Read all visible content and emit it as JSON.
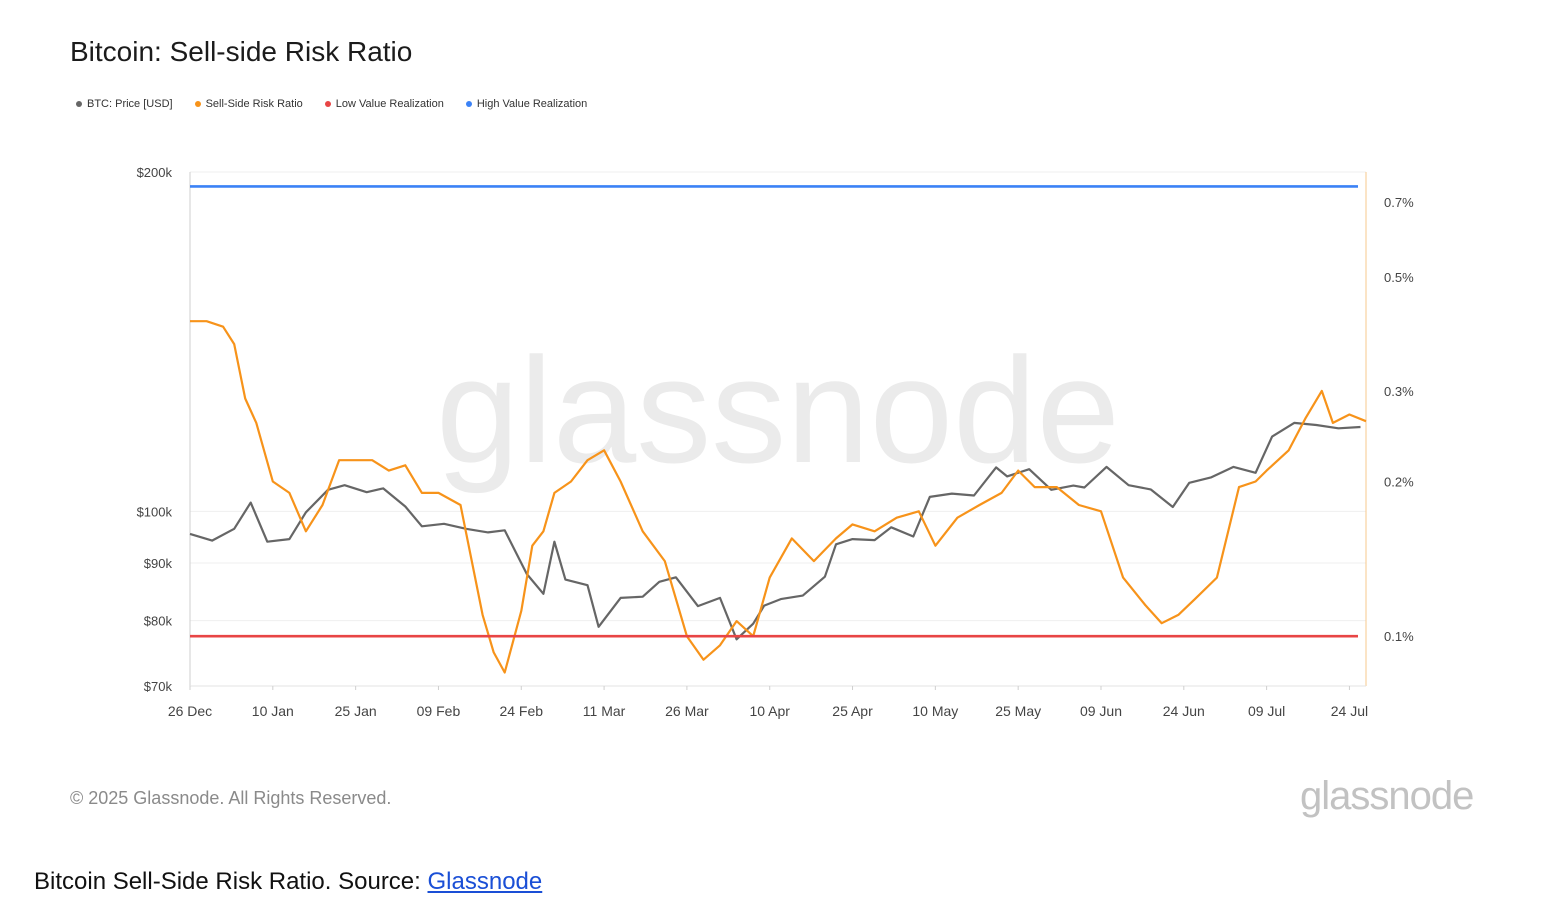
{
  "header": {
    "title": "Bitcoin: Sell-side Risk Ratio"
  },
  "legend": [
    {
      "label": "BTC: Price [USD]",
      "color": "#666666"
    },
    {
      "label": "Sell-Side Risk Ratio",
      "color": "#f7931a"
    },
    {
      "label": "Low Value Realization",
      "color": "#e84545"
    },
    {
      "label": "High Value Realization",
      "color": "#3b82f6"
    }
  ],
  "watermark": "glassnode",
  "footer": {
    "copyright": "© 2025 Glassnode. All Rights Reserved.",
    "logo_text": "glassnode"
  },
  "caption": {
    "text": "Bitcoin Sell-Side Risk Ratio. Source: ",
    "link_label": "Glassnode"
  },
  "chart_data": {
    "type": "line",
    "title": "Bitcoin: Sell-side Risk Ratio",
    "x_ticks": [
      "26 Dec",
      "10 Jan",
      "25 Jan",
      "09 Feb",
      "24 Feb",
      "11 Mar",
      "26 Mar",
      "10 Apr",
      "25 Apr",
      "10 May",
      "25 May",
      "09 Jun",
      "24 Jun",
      "09 Jul",
      "24 Jul"
    ],
    "xlim": [
      "2024-12-26",
      "2025-07-27"
    ],
    "y_left": {
      "scale": "log",
      "ylim": [
        70000,
        200000
      ],
      "ticks": [
        70000,
        80000,
        90000,
        100000,
        200000
      ],
      "tick_labels": [
        "$70k",
        "$80k",
        "$90k",
        "$100k",
        "$200k"
      ]
    },
    "y_right": {
      "scale": "log",
      "ylim": [
        0.08,
        0.8
      ],
      "ticks": [
        0.1,
        0.2,
        0.3,
        0.5,
        0.7
      ],
      "tick_labels": [
        "0.1%",
        "0.2%",
        "0.3%",
        "0.5%",
        "0.7%"
      ]
    },
    "grid": true,
    "series": [
      {
        "name": "BTC: Price [USD]",
        "axis": "left",
        "color": "#666666",
        "x": [
          "2024-12-26",
          "2024-12-30",
          "2025-01-03",
          "2025-01-06",
          "2025-01-09",
          "2025-01-13",
          "2025-01-16",
          "2025-01-20",
          "2025-01-23",
          "2025-01-27",
          "2025-01-30",
          "2025-02-03",
          "2025-02-06",
          "2025-02-10",
          "2025-02-14",
          "2025-02-18",
          "2025-02-21",
          "2025-02-25",
          "2025-02-28",
          "2025-03-02",
          "2025-03-04",
          "2025-03-08",
          "2025-03-10",
          "2025-03-14",
          "2025-03-18",
          "2025-03-21",
          "2025-03-24",
          "2025-03-28",
          "2025-04-01",
          "2025-04-04",
          "2025-04-07",
          "2025-04-09",
          "2025-04-12",
          "2025-04-16",
          "2025-04-20",
          "2025-04-22",
          "2025-04-25",
          "2025-04-29",
          "2025-05-02",
          "2025-05-06",
          "2025-05-09",
          "2025-05-13",
          "2025-05-17",
          "2025-05-21",
          "2025-05-23",
          "2025-05-27",
          "2025-05-31",
          "2025-06-04",
          "2025-06-06",
          "2025-06-10",
          "2025-06-14",
          "2025-06-18",
          "2025-06-22",
          "2025-06-25",
          "2025-06-29",
          "2025-07-03",
          "2025-07-07",
          "2025-07-10",
          "2025-07-14",
          "2025-07-18",
          "2025-07-22",
          "2025-07-26"
        ],
        "values": [
          95500,
          94200,
          96500,
          101800,
          94000,
          94500,
          99800,
          104500,
          105500,
          104000,
          104800,
          101000,
          97000,
          97500,
          96500,
          95800,
          96200,
          88000,
          84500,
          94000,
          87000,
          86000,
          79000,
          83800,
          84000,
          86600,
          87400,
          82400,
          83800,
          77000,
          79500,
          82500,
          83600,
          84200,
          87500,
          93500,
          94500,
          94300,
          96800,
          95000,
          103000,
          103700,
          103300,
          109400,
          107400,
          109000,
          104500,
          105400,
          105000,
          109500,
          105500,
          104600,
          100900,
          106000,
          107200,
          109500,
          108200,
          116500,
          119800,
          119300,
          118500,
          118800
        ]
      },
      {
        "name": "Sell-Side Risk Ratio",
        "axis": "right",
        "color": "#f7931a",
        "x": [
          "2024-12-26",
          "2024-12-29",
          "2025-01-01",
          "2025-01-03",
          "2025-01-05",
          "2025-01-07",
          "2025-01-10",
          "2025-01-13",
          "2025-01-16",
          "2025-01-19",
          "2025-01-22",
          "2025-01-25",
          "2025-01-28",
          "2025-01-31",
          "2025-02-03",
          "2025-02-06",
          "2025-02-09",
          "2025-02-13",
          "2025-02-17",
          "2025-02-19",
          "2025-02-21",
          "2025-02-24",
          "2025-02-26",
          "2025-02-28",
          "2025-03-02",
          "2025-03-05",
          "2025-03-08",
          "2025-03-11",
          "2025-03-14",
          "2025-03-18",
          "2025-03-22",
          "2025-03-26",
          "2025-03-29",
          "2025-04-01",
          "2025-04-04",
          "2025-04-07",
          "2025-04-10",
          "2025-04-14",
          "2025-04-18",
          "2025-04-22",
          "2025-04-25",
          "2025-04-29",
          "2025-05-03",
          "2025-05-07",
          "2025-05-10",
          "2025-05-14",
          "2025-05-18",
          "2025-05-22",
          "2025-05-25",
          "2025-05-28",
          "2025-06-01",
          "2025-06-05",
          "2025-06-09",
          "2025-06-13",
          "2025-06-17",
          "2025-06-20",
          "2025-06-23",
          "2025-06-26",
          "2025-06-30",
          "2025-07-04",
          "2025-07-07",
          "2025-07-09",
          "2025-07-13",
          "2025-07-16",
          "2025-07-19",
          "2025-07-21",
          "2025-07-24",
          "2025-07-27"
        ],
        "values": [
          0.41,
          0.41,
          0.4,
          0.37,
          0.29,
          0.26,
          0.2,
          0.19,
          0.16,
          0.18,
          0.22,
          0.22,
          0.22,
          0.21,
          0.215,
          0.19,
          0.19,
          0.18,
          0.11,
          0.093,
          0.085,
          0.112,
          0.15,
          0.16,
          0.19,
          0.2,
          0.22,
          0.23,
          0.2,
          0.16,
          0.14,
          0.1,
          0.09,
          0.096,
          0.107,
          0.1,
          0.13,
          0.155,
          0.14,
          0.155,
          0.165,
          0.16,
          0.17,
          0.175,
          0.15,
          0.17,
          0.18,
          0.19,
          0.21,
          0.195,
          0.195,
          0.18,
          0.175,
          0.13,
          0.115,
          0.106,
          0.11,
          0.118,
          0.13,
          0.195,
          0.2,
          0.21,
          0.23,
          0.265,
          0.3,
          0.26,
          0.27,
          0.262
        ]
      },
      {
        "name": "Low Value Realization",
        "axis": "right",
        "color": "#e84545",
        "values": [
          0.1,
          0.1
        ]
      },
      {
        "name": "High Value Realization",
        "axis": "right",
        "color": "#3b82f6",
        "values": [
          0.75,
          0.75
        ]
      }
    ]
  }
}
